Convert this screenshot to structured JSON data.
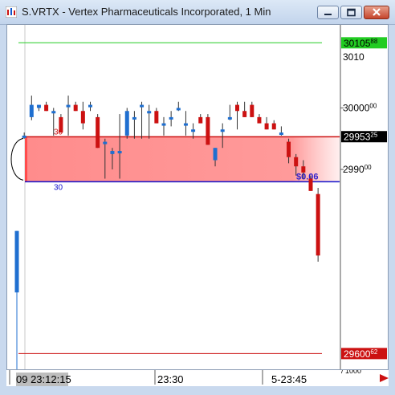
{
  "window": {
    "title": "S.VRTX - Vertex Pharmaceuticals Incorporated, 1 Min"
  },
  "chart_data": {
    "type": "candlestick",
    "symbol": "S.VRTX",
    "y_tick_labels": [
      {
        "main": "30000",
        "sup": "00",
        "value": 300.0
      },
      {
        "main": "2990",
        "sup": "00",
        "value": 299.0
      }
    ],
    "y_tick_top_partial": "3010",
    "x_tick_labels": [
      "09 23:12:15",
      "23:30",
      "5-23:45"
    ],
    "x_axis_right_note": "/ 1000",
    "badges": [
      {
        "main": "30105",
        "sup": "88",
        "value": 301.0588,
        "bg": "#22cc22",
        "fg": "#000000"
      },
      {
        "main": "29953",
        "sup": "25",
        "value": 299.5325,
        "bg": "#000000",
        "fg": "#ffffff"
      },
      {
        "main": "29600",
        "sup": "62",
        "value": 296.0062,
        "bg": "#cc1111",
        "fg": "#ffffff"
      }
    ],
    "zone_labels": {
      "top": "30",
      "bottom": "30",
      "price": "$0.06"
    },
    "lines": {
      "green": 301.0588,
      "red": 296.0062,
      "blue": 298.8
    },
    "zone": {
      "top": 299.53,
      "bottom": 298.8
    },
    "ylim": [
      295.75,
      301.35
    ],
    "candles": [
      {
        "o": 297.0,
        "h": 298.0,
        "l": 295.6,
        "c": 298.0
      },
      {
        "o": 299.55,
        "h": 299.6,
        "l": 299.5,
        "c": 299.55
      },
      {
        "o": 299.85,
        "h": 300.2,
        "l": 299.8,
        "c": 300.05
      },
      {
        "o": 300.0,
        "h": 300.05,
        "l": 299.95,
        "c": 300.05
      },
      {
        "o": 300.05,
        "h": 300.1,
        "l": 299.95,
        "c": 299.95
      },
      {
        "o": 299.95,
        "h": 300.0,
        "l": 299.55,
        "c": 299.95
      },
      {
        "o": 299.85,
        "h": 299.9,
        "l": 299.6,
        "c": 299.6
      },
      {
        "o": 300.05,
        "h": 300.2,
        "l": 299.55,
        "c": 300.05
      },
      {
        "o": 300.05,
        "h": 300.1,
        "l": 299.95,
        "c": 299.95
      },
      {
        "o": 299.95,
        "h": 300.1,
        "l": 299.65,
        "c": 299.75
      },
      {
        "o": 300.05,
        "h": 300.1,
        "l": 299.95,
        "c": 300.05
      },
      {
        "o": 299.85,
        "h": 299.9,
        "l": 299.35,
        "c": 299.35
      },
      {
        "o": 299.45,
        "h": 299.5,
        "l": 298.85,
        "c": 299.45
      },
      {
        "o": 299.25,
        "h": 299.35,
        "l": 299.0,
        "c": 299.3
      },
      {
        "o": 299.3,
        "h": 299.9,
        "l": 298.85,
        "c": 299.3
      },
      {
        "o": 299.55,
        "h": 300.0,
        "l": 299.5,
        "c": 299.95
      },
      {
        "o": 299.85,
        "h": 299.95,
        "l": 299.5,
        "c": 299.85
      },
      {
        "o": 300.05,
        "h": 300.1,
        "l": 299.5,
        "c": 300.05
      },
      {
        "o": 299.95,
        "h": 300.05,
        "l": 299.5,
        "c": 299.95
      },
      {
        "o": 299.95,
        "h": 300.0,
        "l": 299.75,
        "c": 299.75
      },
      {
        "o": 299.75,
        "h": 299.85,
        "l": 299.55,
        "c": 299.75
      },
      {
        "o": 299.85,
        "h": 299.95,
        "l": 299.7,
        "c": 299.85
      },
      {
        "o": 300.0,
        "h": 300.1,
        "l": 299.95,
        "c": 300.0
      },
      {
        "o": 299.75,
        "h": 299.95,
        "l": 299.55,
        "c": 299.75
      },
      {
        "o": 299.65,
        "h": 299.75,
        "l": 299.5,
        "c": 299.65
      },
      {
        "o": 299.85,
        "h": 299.9,
        "l": 299.75,
        "c": 299.75
      },
      {
        "o": 299.85,
        "h": 299.9,
        "l": 299.4,
        "c": 299.4
      },
      {
        "o": 299.15,
        "h": 299.35,
        "l": 299.05,
        "c": 299.35
      },
      {
        "o": 299.65,
        "h": 299.75,
        "l": 299.35,
        "c": 299.65
      },
      {
        "o": 299.85,
        "h": 300.05,
        "l": 299.8,
        "c": 299.85
      },
      {
        "o": 300.05,
        "h": 300.1,
        "l": 299.65,
        "c": 299.95
      },
      {
        "o": 299.95,
        "h": 300.1,
        "l": 299.85,
        "c": 299.85
      },
      {
        "o": 300.05,
        "h": 300.1,
        "l": 299.85,
        "c": 299.85
      },
      {
        "o": 299.85,
        "h": 299.9,
        "l": 299.75,
        "c": 299.75
      },
      {
        "o": 299.75,
        "h": 299.85,
        "l": 299.65,
        "c": 299.65
      },
      {
        "o": 299.75,
        "h": 299.8,
        "l": 299.65,
        "c": 299.65
      },
      {
        "o": 299.6,
        "h": 299.7,
        "l": 299.55,
        "c": 299.6
      },
      {
        "o": 299.45,
        "h": 299.5,
        "l": 299.1,
        "c": 299.2
      },
      {
        "o": 299.2,
        "h": 299.25,
        "l": 298.9,
        "c": 299.05
      },
      {
        "o": 299.05,
        "h": 299.15,
        "l": 298.85,
        "c": 298.95
      },
      {
        "o": 298.85,
        "h": 298.9,
        "l": 298.65,
        "c": 298.65
      },
      {
        "o": 298.6,
        "h": 298.7,
        "l": 297.5,
        "c": 297.6
      }
    ]
  }
}
